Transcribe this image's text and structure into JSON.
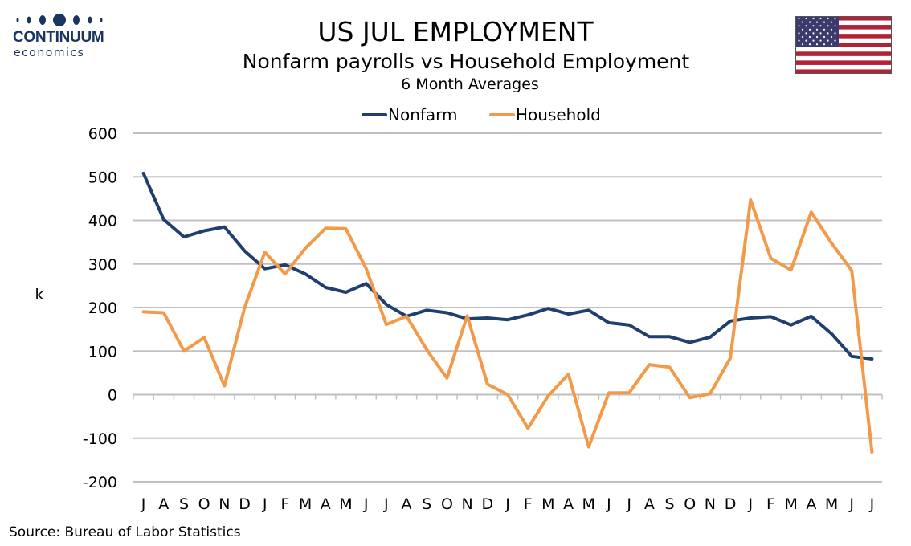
{
  "brand": {
    "name": "CONTINUUM",
    "sub": "economics",
    "color": "#1a3560"
  },
  "flag": {
    "icon": "us-flag-icon",
    "colors": {
      "red": "#b22234",
      "white": "#ffffff",
      "blue": "#3c3b6e"
    }
  },
  "source": "Source: Bureau of Labor Statistics",
  "chart_data": {
    "type": "line",
    "title": "US JUL EMPLOYMENT",
    "subtitle": "Nonfarm payrolls vs Household Employment",
    "subtitle2": "6 Month Averages",
    "xlabel": "",
    "ylabel": "k",
    "ylim": [
      -200,
      600
    ],
    "yticks": [
      -200,
      -100,
      0,
      100,
      200,
      300,
      400,
      500,
      600
    ],
    "grid": true,
    "legend": "top-center",
    "categories": [
      "J",
      "A",
      "S",
      "O",
      "N",
      "D",
      "J",
      "F",
      "M",
      "A",
      "M",
      "J",
      "J",
      "A",
      "S",
      "O",
      "N",
      "D",
      "J",
      "F",
      "M",
      "A",
      "M",
      "J",
      "J",
      "A",
      "S",
      "O",
      "N",
      "D",
      "J",
      "F",
      "M",
      "A",
      "M",
      "J",
      "J"
    ],
    "series": [
      {
        "name": "Nonfarm",
        "color": "#1f3f6e",
        "values": [
          508,
          402,
          362,
          376,
          385,
          330,
          289,
          298,
          277,
          246,
          235,
          255,
          207,
          180,
          194,
          188,
          174,
          176,
          172,
          183,
          198,
          185,
          194,
          165,
          160,
          133,
          133,
          120,
          132,
          169,
          176,
          179,
          160,
          180,
          140,
          88,
          82
        ]
      },
      {
        "name": "Household",
        "color": "#f39a4a",
        "values": [
          190,
          188,
          100,
          131,
          20,
          200,
          327,
          277,
          336,
          382,
          381,
          290,
          161,
          180,
          103,
          38,
          181,
          24,
          0,
          -77,
          -3,
          47,
          -120,
          4,
          4,
          69,
          63,
          -7,
          2,
          84,
          447,
          313,
          286,
          419,
          348,
          285,
          -132
        ]
      }
    ]
  }
}
